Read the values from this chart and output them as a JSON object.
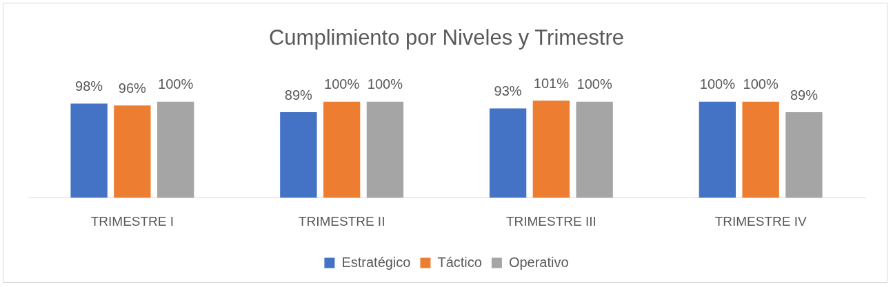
{
  "chart_data": {
    "type": "bar",
    "title": "Cumplimiento por Niveles y Trimestre",
    "categories": [
      "TRIMESTRE I",
      "TRIMESTRE II",
      "TRIMESTRE III",
      "TRIMESTRE IV"
    ],
    "series": [
      {
        "name": "Estratégico",
        "color": "#4472c4",
        "values": [
          98,
          89,
          93,
          100
        ],
        "value_labels": [
          "98%",
          "89%",
          "93%",
          "100%"
        ]
      },
      {
        "name": "Táctico",
        "color": "#ed7d31",
        "values": [
          96,
          100,
          101,
          100
        ],
        "value_labels": [
          "96%",
          "100%",
          "101%",
          "100%"
        ]
      },
      {
        "name": "Operativo",
        "color": "#a5a5a5",
        "values": [
          100,
          100,
          100,
          89
        ],
        "value_labels": [
          "100%",
          "100%",
          "100%",
          "89%"
        ]
      }
    ],
    "grid": false,
    "legend": "bottom"
  }
}
